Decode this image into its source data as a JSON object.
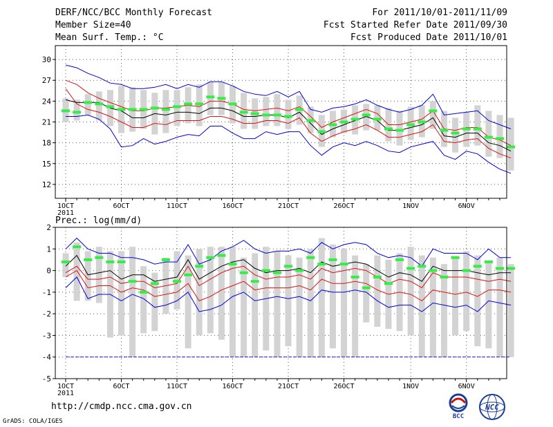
{
  "header": {
    "title": "DERF/NCC/BCC Monthly Forecast",
    "member_size": "Member Size=40",
    "variable": "Mean Surf. Temp.: °C",
    "period": "For 2011/10/01-2011/11/09",
    "started": "Fcst Started Refer Date 2011/09/30",
    "produced": "Fcst Produced Date 2011/10/01"
  },
  "footer": {
    "url": "http://cmdp.ncc.cma.gov.cn",
    "grads": "GrADS: COLA/IGES",
    "logo_bcc": "BCC",
    "logo_ncc": "NCC"
  },
  "colors": {
    "box": "#d3d3d3",
    "median": "#33ee44",
    "mean": "#000000",
    "band": "#dd1111",
    "envelope": "#0000dd",
    "grid": "#555555"
  },
  "chart_data": [
    {
      "type": "line",
      "title": "Mean Surf. Temp.: °C",
      "x_tick_labels": [
        "1OCT",
        "6OCT",
        "11OCT",
        "16OCT",
        "21OCT",
        "26OCT",
        "1NOV",
        "6NOV"
      ],
      "x_tick_days": [
        1,
        6,
        11,
        16,
        21,
        26,
        32,
        37
      ],
      "x_sub_label": "2011",
      "xlim": [
        1,
        40
      ],
      "ylim": [
        10,
        32
      ],
      "yticks": [
        12,
        15,
        18,
        21,
        24,
        27,
        30
      ],
      "series": [
        {
          "name": "ensemble mean",
          "values": [
            24.2,
            23.8,
            23.8,
            23.8,
            23.0,
            22.6,
            21.6,
            21.6,
            22.2,
            22.0,
            22.4,
            22.4,
            22.2,
            23.0,
            23.0,
            22.6,
            21.8,
            21.8,
            22.0,
            22.0,
            21.6,
            22.4,
            20.8,
            19.2,
            20.0,
            20.6,
            21.2,
            21.8,
            21.2,
            19.8,
            19.8,
            20.2,
            20.6,
            21.6,
            19.0,
            18.8,
            19.4,
            19.4,
            18.0,
            17.6,
            16.8
          ]
        },
        {
          "name": "upper envelope",
          "values": [
            29.2,
            28.8,
            28.0,
            27.4,
            26.6,
            26.4,
            25.8,
            25.8,
            26.0,
            26.4,
            25.8,
            26.4,
            26.0,
            26.8,
            26.8,
            26.2,
            25.4,
            25.0,
            24.8,
            25.4,
            24.6,
            25.4,
            22.8,
            22.4,
            23.0,
            23.2,
            23.6,
            24.2,
            23.4,
            22.8,
            22.4,
            22.8,
            23.4,
            25.0,
            22.0,
            22.2,
            22.4,
            22.6,
            21.2,
            20.6,
            20.0
          ]
        },
        {
          "name": "lower envelope",
          "values": [
            21.8,
            21.8,
            22.0,
            21.4,
            20.0,
            17.4,
            17.6,
            18.6,
            17.8,
            18.2,
            18.8,
            19.2,
            19.0,
            20.4,
            20.4,
            19.4,
            18.6,
            18.6,
            19.6,
            19.2,
            19.6,
            19.6,
            17.6,
            16.2,
            17.4,
            18.0,
            17.6,
            18.2,
            17.6,
            16.8,
            16.6,
            17.4,
            17.8,
            18.2,
            16.2,
            15.6,
            16.8,
            16.4,
            15.2,
            14.2,
            13.6
          ]
        },
        {
          "name": "upper band",
          "values": [
            27.0,
            26.4,
            25.2,
            24.4,
            23.8,
            23.2,
            22.6,
            22.6,
            23.0,
            23.0,
            23.2,
            23.4,
            23.2,
            24.0,
            24.0,
            23.6,
            22.8,
            22.6,
            22.8,
            23.0,
            22.6,
            23.2,
            21.8,
            20.2,
            21.0,
            21.6,
            22.2,
            22.8,
            22.2,
            20.6,
            20.6,
            21.0,
            21.4,
            22.6,
            20.0,
            19.8,
            20.2,
            20.2,
            18.8,
            18.4,
            17.6
          ]
        },
        {
          "name": "lower band",
          "values": [
            25.8,
            23.6,
            22.8,
            22.4,
            21.8,
            21.0,
            20.2,
            20.2,
            20.8,
            20.6,
            21.2,
            21.2,
            21.2,
            21.8,
            21.8,
            21.4,
            20.8,
            20.8,
            21.2,
            21.2,
            20.8,
            21.6,
            19.4,
            18.2,
            19.0,
            19.6,
            20.0,
            20.6,
            19.8,
            18.8,
            18.8,
            19.2,
            19.6,
            20.6,
            18.2,
            18.0,
            18.4,
            18.6,
            17.2,
            16.4,
            15.8
          ]
        },
        {
          "name": "median",
          "values": [
            22.6,
            22.4,
            23.8,
            23.6,
            23.2,
            22.8,
            22.8,
            22.8,
            23.0,
            22.8,
            23.2,
            23.6,
            23.6,
            24.6,
            24.4,
            23.6,
            22.4,
            22.2,
            22.0,
            22.0,
            21.8,
            22.8,
            21.2,
            19.6,
            20.6,
            21.0,
            21.4,
            22.0,
            21.4,
            20.0,
            19.8,
            20.6,
            21.0,
            22.6,
            19.8,
            19.4,
            20.0,
            20.0,
            18.8,
            18.6,
            17.4
          ]
        },
        {
          "name": "box top",
          "values": [
            24.4,
            24.2,
            25.0,
            25.4,
            25.6,
            26.2,
            26.0,
            25.6,
            25.2,
            25.6,
            25.6,
            26.0,
            26.4,
            26.8,
            26.8,
            26.2,
            25.2,
            24.4,
            24.6,
            25.0,
            24.2,
            24.8,
            23.2,
            22.0,
            22.6,
            22.8,
            23.4,
            23.6,
            23.4,
            23.0,
            22.6,
            23.2,
            23.4,
            24.0,
            22.6,
            21.6,
            22.4,
            23.4,
            22.6,
            22.0,
            21.6
          ]
        },
        {
          "name": "box bottom",
          "values": [
            21.0,
            21.2,
            22.0,
            21.2,
            20.4,
            19.4,
            19.6,
            20.0,
            19.2,
            19.4,
            20.4,
            20.8,
            20.4,
            22.0,
            22.0,
            20.8,
            20.0,
            20.0,
            20.4,
            20.4,
            20.0,
            20.6,
            19.4,
            17.4,
            18.8,
            19.4,
            19.2,
            19.8,
            19.8,
            18.2,
            17.6,
            18.4,
            18.8,
            20.0,
            17.4,
            16.6,
            17.4,
            17.6,
            16.0,
            15.8,
            14.0
          ]
        }
      ]
    },
    {
      "type": "line",
      "title": "Prec.: log(mm/d)",
      "x_tick_labels": [
        "1OCT",
        "6OCT",
        "11OCT",
        "16OCT",
        "21OCT",
        "26OCT",
        "1NOV",
        "6NOV"
      ],
      "x_tick_days": [
        1,
        6,
        11,
        16,
        21,
        26,
        32,
        37
      ],
      "x_sub_label": "2011",
      "xlim": [
        1,
        40
      ],
      "ylim": [
        -5,
        2
      ],
      "yticks": [
        -5,
        -4,
        -3,
        -2,
        -1,
        0,
        1,
        2
      ],
      "series": [
        {
          "name": "ensemble mean",
          "values": [
            0.2,
            0.7,
            -0.2,
            -0.1,
            0.0,
            -0.4,
            -0.2,
            -0.2,
            -0.5,
            -0.4,
            -0.3,
            0.5,
            -0.4,
            -0.1,
            0.2,
            0.4,
            0.5,
            0.1,
            -0.1,
            0.0,
            0.0,
            0.1,
            -0.1,
            0.4,
            0.2,
            0.3,
            0.4,
            0.3,
            0.0,
            -0.3,
            -0.1,
            -0.2,
            -0.5,
            0.2,
            0.0,
            0.0,
            0.0,
            -0.1,
            -0.2,
            -0.1,
            -0.1
          ]
        },
        {
          "name": "upper envelope",
          "values": [
            1.0,
            1.5,
            1.0,
            0.8,
            0.8,
            0.6,
            0.6,
            0.5,
            0.3,
            0.4,
            0.4,
            1.2,
            0.3,
            0.5,
            0.9,
            1.1,
            1.4,
            1.0,
            0.8,
            0.9,
            0.9,
            1.0,
            0.8,
            1.3,
            1.0,
            1.2,
            1.3,
            1.2,
            0.8,
            0.6,
            0.7,
            0.6,
            0.2,
            1.0,
            0.8,
            0.8,
            0.8,
            0.5,
            1.0,
            0.6,
            0.6
          ]
        },
        {
          "name": "lower envelope",
          "values": [
            -0.8,
            -0.3,
            -1.3,
            -1.1,
            -1.1,
            -1.4,
            -1.1,
            -1.3,
            -1.7,
            -1.6,
            -1.4,
            -1.0,
            -1.9,
            -1.8,
            -1.6,
            -1.2,
            -1.0,
            -1.4,
            -1.3,
            -1.2,
            -1.3,
            -1.2,
            -1.4,
            -0.9,
            -1.0,
            -1.0,
            -0.9,
            -1.0,
            -1.4,
            -1.7,
            -1.6,
            -1.6,
            -1.9,
            -1.5,
            -1.6,
            -1.7,
            -1.6,
            -1.9,
            -1.4,
            -1.5,
            -1.6
          ]
        },
        {
          "name": "upper band",
          "values": [
            -0.1,
            0.2,
            -0.4,
            -0.4,
            -0.3,
            -0.6,
            -0.5,
            -0.5,
            -0.8,
            -0.7,
            -0.6,
            0.2,
            -0.7,
            -0.4,
            -0.1,
            0.1,
            0.2,
            -0.2,
            -0.4,
            -0.3,
            -0.3,
            -0.2,
            -0.4,
            0.1,
            -0.1,
            0.0,
            0.1,
            0.0,
            -0.3,
            -0.6,
            -0.4,
            -0.5,
            -0.8,
            -0.1,
            -0.3,
            -0.3,
            -0.3,
            -0.4,
            -0.5,
            -0.4,
            -0.5
          ]
        },
        {
          "name": "lower band",
          "values": [
            -0.3,
            0.0,
            -0.8,
            -0.7,
            -0.7,
            -1.0,
            -0.8,
            -0.9,
            -1.2,
            -1.1,
            -1.0,
            -0.6,
            -1.4,
            -1.2,
            -0.9,
            -0.7,
            -0.5,
            -0.9,
            -0.8,
            -0.8,
            -0.8,
            -0.7,
            -0.9,
            -0.4,
            -0.6,
            -0.6,
            -0.5,
            -0.6,
            -0.9,
            -1.1,
            -1.0,
            -1.1,
            -1.4,
            -0.9,
            -1.0,
            -1.1,
            -1.0,
            -1.2,
            -0.9,
            -0.9,
            -1.0
          ]
        },
        {
          "name": "median",
          "values": [
            0.4,
            1.1,
            0.5,
            0.6,
            0.4,
            0.4,
            -0.5,
            -1.0,
            -0.6,
            0.5,
            -0.5,
            -0.2,
            0.2,
            0.6,
            0.7,
            0.3,
            -0.1,
            -0.5,
            0.0,
            -0.1,
            0.2,
            0.0,
            0.6,
            0.3,
            0.5,
            0.3,
            -0.3,
            -0.8,
            -0.3,
            -0.6,
            0.5,
            0.1,
            0.2,
            0.0,
            -0.3,
            0.6,
            0.0,
            0.2,
            0.4,
            0.1,
            0.1
          ]
        },
        {
          "name": "box top",
          "values": [
            0.8,
            1.3,
            0.9,
            1.1,
            0.9,
            0.9,
            1.1,
            0.2,
            -0.1,
            0.6,
            0.9,
            0.7,
            1.0,
            1.1,
            1.1,
            1.1,
            0.6,
            0.8,
            1.1,
            0.9,
            0.7,
            0.6,
            1.0,
            1.5,
            1.2,
            1.0,
            0.7,
            0.3,
            0.7,
            0.5,
            0.8,
            1.1,
            0.7,
            0.6,
            0.3,
            0.6,
            0.9,
            0.7,
            0.4,
            0.6,
            0.3
          ]
        },
        {
          "name": "box bottom",
          "values": [
            -0.3,
            -1.4,
            -1.4,
            -1.5,
            -3.1,
            -3.0,
            -4.0,
            -2.9,
            -2.8,
            -2.0,
            -1.8,
            -3.6,
            -3.0,
            -2.9,
            -3.2,
            -4.0,
            -4.0,
            -4.0,
            -3.7,
            -4.0,
            -3.5,
            -4.0,
            -4.0,
            -4.0,
            -3.6,
            -4.0,
            -4.0,
            -2.4,
            -2.6,
            -2.7,
            -2.8,
            -3.0,
            -4.0,
            -4.0,
            -4.0,
            -3.0,
            -2.8,
            -3.5,
            -3.6,
            -4.0,
            -4.0
          ]
        },
        {
          "name": "floor",
          "values": [
            -4,
            -4,
            -4,
            -4,
            -4,
            -4,
            -4,
            -4,
            -4,
            -4,
            -4,
            -4,
            -4,
            -4,
            -4,
            -4,
            -4,
            -4,
            -4,
            -4,
            -4,
            -4,
            -4,
            -4,
            -4,
            -4,
            -4,
            -4,
            -4,
            -4,
            -4,
            -4,
            -4,
            -4,
            -4,
            -4,
            -4,
            -4,
            -4,
            -4,
            -4
          ]
        }
      ]
    }
  ]
}
